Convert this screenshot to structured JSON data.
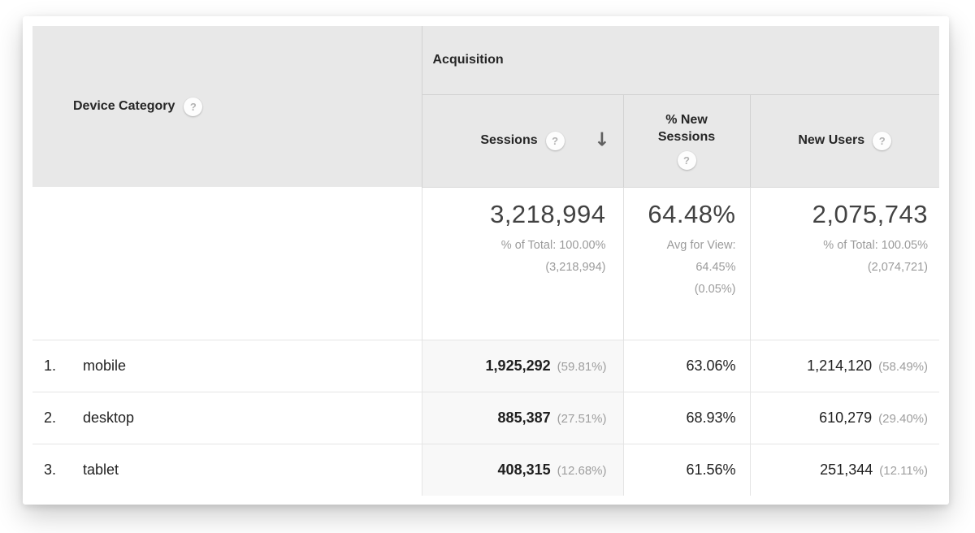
{
  "table": {
    "dimension_column": {
      "label": "Device Category"
    },
    "group_header": {
      "label": "Acquisition"
    },
    "metric_columns": {
      "sessions": {
        "label": "Sessions",
        "sort": "descending"
      },
      "percent_new_sessions": {
        "label": "% New Sessions"
      },
      "new_users": {
        "label": "New Users"
      }
    },
    "totals": {
      "sessions": {
        "value": "3,218,994",
        "note_line1": "% of Total: 100.00%",
        "note_line2": "(3,218,994)"
      },
      "percent_new_sessions": {
        "value": "64.48%",
        "note_line1": "Avg for View:",
        "note_line2": "64.45%",
        "note_line3": "(0.05%)"
      },
      "new_users": {
        "value": "2,075,743",
        "note_line1": "% of Total: 100.05%",
        "note_line2": "(2,074,721)"
      }
    },
    "rows": [
      {
        "rank": "1.",
        "device": "mobile",
        "sessions": "1,925,292",
        "sessions_share": "(59.81%)",
        "percent_new_sessions": "63.06%",
        "new_users": "1,214,120",
        "new_users_share": "(58.49%)"
      },
      {
        "rank": "2.",
        "device": "desktop",
        "sessions": "885,387",
        "sessions_share": "(27.51%)",
        "percent_new_sessions": "68.93%",
        "new_users": "610,279",
        "new_users_share": "(29.40%)"
      },
      {
        "rank": "3.",
        "device": "tablet",
        "sessions": "408,315",
        "sessions_share": "(12.68%)",
        "percent_new_sessions": "61.56%",
        "new_users": "251,344",
        "new_users_share": "(12.11%)"
      }
    ]
  },
  "icons": {
    "help": "?",
    "sort_descending": "↓"
  },
  "colors": {
    "header_bg": "#e8e8e8",
    "card_bg": "#ffffff",
    "header_border": "#d2d2d2",
    "row_border": "#e5e5e5",
    "sorted_column_bg": "#f8f8f8",
    "text_dark": "#1f1f1f",
    "text_muted": "#9b9b9b",
    "totals_number": "#424242"
  }
}
